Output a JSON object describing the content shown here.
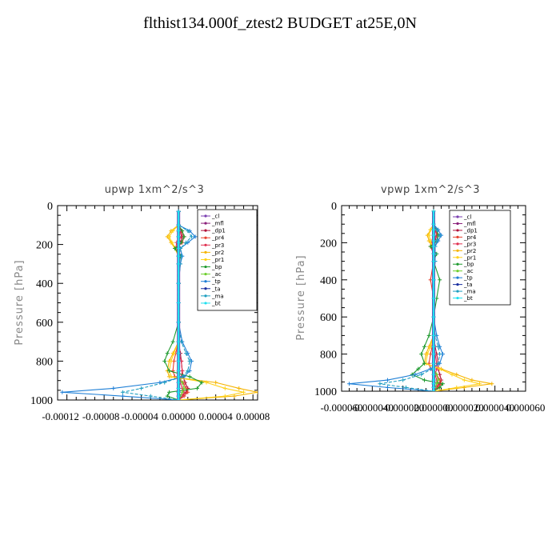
{
  "title": "flthist134.000f_ztest2  BUDGET at25E,0N",
  "legend_entries": [
    {
      "label": "_cl",
      "color": "#7a3fb0"
    },
    {
      "label": "_mfl",
      "color": "#8a1f7a"
    },
    {
      "label": "_dp1",
      "color": "#b0123a"
    },
    {
      "label": "_pr4",
      "color": "#e8412e"
    },
    {
      "label": "_pr3",
      "color": "#e03050"
    },
    {
      "label": "_pr2",
      "color": "#f5b400"
    },
    {
      "label": "_pr1",
      "color": "#ffd21a"
    },
    {
      "label": "_bp",
      "color": "#1e9a2e"
    },
    {
      "label": "_ac",
      "color": "#6ecf2e"
    },
    {
      "label": "_tp",
      "color": "#1e7fd6"
    },
    {
      "label": "_ta",
      "color": "#1a2fa0"
    },
    {
      "label": "_ma",
      "color": "#1e9ec0"
    },
    {
      "label": "_bt",
      "color": "#20e0f0"
    }
  ],
  "chart_data": [
    {
      "type": "line",
      "title": "upwp   1xm^2/s^3",
      "ylabel": "Pressure [hPa]",
      "xlim": [
        -0.00013,
        8.5e-05
      ],
      "ylim": [
        1000,
        0
      ],
      "x_ticks": [
        "-0.00012",
        "-0.00008",
        "-0.00004",
        "0.00000",
        "0.00004",
        "0.00008"
      ],
      "x_tick_values": [
        -0.00012,
        -8e-05,
        -4e-05,
        0.0,
        4e-05,
        8e-05
      ],
      "y_ticks": [
        "0",
        "200",
        "400",
        "600",
        "800",
        "1000"
      ],
      "y_tick_values": [
        0,
        200,
        400,
        600,
        800,
        1000
      ],
      "pressure": [
        30,
        100,
        130,
        160,
        190,
        220,
        260,
        300,
        400,
        500,
        600,
        700,
        760,
        800,
        850,
        880,
        910,
        940,
        960,
        980,
        1000
      ],
      "series": [
        {
          "name": "_cl",
          "values": [
            0,
            0,
            0,
            0,
            0,
            0,
            0,
            0,
            0,
            0,
            0,
            0,
            0,
            0,
            0,
            0,
            0,
            0,
            0,
            0,
            0
          ]
        },
        {
          "name": "_mfl",
          "values": [
            0,
            0,
            0,
            0,
            0,
            0,
            0,
            0,
            0,
            0,
            0,
            0,
            0,
            0,
            0,
            0,
            0,
            0,
            0,
            0,
            0
          ]
        },
        {
          "name": "_dp1",
          "values": [
            0,
            0,
            2e-06,
            4e-06,
            2e-06,
            -2e-06,
            1e-06,
            0,
            0,
            0,
            0,
            0,
            2e-06,
            3e-06,
            4e-06,
            5e-06,
            7e-06,
            1e-05,
            8e-06,
            4e-06,
            0
          ]
        },
        {
          "name": "_pr4",
          "values": [
            0,
            0,
            3e-06,
            6e-06,
            4e-06,
            -3e-06,
            2e-06,
            0,
            0,
            0,
            0,
            0,
            -3e-06,
            -5e-06,
            -6e-06,
            -4e-06,
            5e-06,
            8e-06,
            1e-05,
            6e-06,
            0
          ]
        },
        {
          "name": "_pr3",
          "values": [
            0,
            0,
            2e-06,
            3e-06,
            -2e-06,
            -3e-06,
            0,
            0,
            0,
            0,
            0,
            0,
            0,
            3e-06,
            4e-06,
            3e-06,
            2e-06,
            4e-06,
            6e-06,
            4e-06,
            0
          ]
        },
        {
          "name": "_pr2",
          "values": [
            0,
            0,
            -8e-06,
            -1.2e-05,
            -8e-06,
            -4e-06,
            0,
            0,
            0,
            0,
            0,
            0,
            -6e-06,
            -1e-05,
            -1.2e-05,
            -1e-05,
            4e-05,
            6.5e-05,
            8.5e-05,
            6e-05,
            0
          ]
        },
        {
          "name": "_pr1",
          "values": [
            0,
            0,
            -6e-06,
            -1e-05,
            -7e-06,
            -3e-06,
            0,
            0,
            0,
            0,
            0,
            0,
            -5e-06,
            -8e-06,
            -1e-05,
            -8e-06,
            3e-05,
            5e-05,
            7e-05,
            5e-05,
            0
          ]
        },
        {
          "name": "_bp",
          "values": [
            0,
            0,
            4e-06,
            6e-06,
            3e-06,
            -4e-06,
            2e-06,
            0,
            0,
            0,
            0,
            -6e-06,
            -1.2e-05,
            -1.5e-05,
            -1e-05,
            1.2e-05,
            2.5e-05,
            2e-05,
            -1e-05,
            -1.2e-05,
            0
          ]
        },
        {
          "name": "_ac",
          "values": [
            0,
            0,
            0,
            0,
            0,
            0,
            0,
            0,
            0,
            0,
            0,
            0,
            0,
            0,
            0,
            0,
            4e-06,
            6e-06,
            4e-06,
            2e-06,
            0
          ]
        },
        {
          "name": "_tp",
          "values": [
            0,
            0,
            1.2e-05,
            1.8e-05,
            1e-05,
            2e-06,
            4e-06,
            2e-06,
            0,
            0,
            0,
            4e-06,
            1e-05,
            1.4e-05,
            1.2e-05,
            6e-06,
            -2e-05,
            -7e-05,
            -0.000125,
            -6e-05,
            0
          ]
        },
        {
          "name": "_ta",
          "values": [
            0,
            0,
            0,
            0,
            0,
            0,
            0,
            0,
            0,
            0,
            0,
            0,
            0,
            0,
            0,
            0,
            0,
            0,
            0,
            0,
            0
          ]
        },
        {
          "name": "_ma",
          "values": [
            0,
            0,
            1e-05,
            1.4e-05,
            8e-06,
            2e-06,
            3e-06,
            2e-06,
            0,
            0,
            0,
            3e-06,
            8e-06,
            1.2e-05,
            1e-05,
            4e-06,
            -1.5e-05,
            -4e-05,
            -6e-05,
            -3e-05,
            0
          ]
        },
        {
          "name": "_bt",
          "values": [
            0,
            0,
            0,
            0,
            0,
            0,
            0,
            0,
            0,
            0,
            0,
            0,
            0,
            0,
            0,
            0,
            0,
            0,
            0,
            0,
            0
          ]
        }
      ]
    },
    {
      "type": "line",
      "title": "vpwp   1xm^2/s^3",
      "ylabel": "Pressure [hPa]",
      "xlim": [
        -6e-05,
        6e-05
      ],
      "ylim": [
        1000,
        0
      ],
      "x_ticks": [
        "-0.000060",
        "-0.000040",
        "-0.000020",
        "0.000000",
        "0.000020",
        "0.000040",
        "0.000060"
      ],
      "x_tick_values": [
        -6e-05,
        -4e-05,
        -2e-05,
        0.0,
        2e-05,
        4e-05,
        6e-05
      ],
      "y_ticks": [
        "0",
        "200",
        "400",
        "600",
        "800",
        "1000"
      ],
      "y_tick_values": [
        0,
        200,
        400,
        600,
        800,
        1000
      ],
      "pressure": [
        30,
        100,
        130,
        160,
        190,
        220,
        260,
        300,
        400,
        500,
        600,
        700,
        760,
        800,
        850,
        880,
        910,
        940,
        960,
        980,
        1000
      ],
      "series": [
        {
          "name": "_cl",
          "values": [
            0,
            0,
            0,
            0,
            0,
            0,
            0,
            0,
            0,
            0,
            0,
            0,
            0,
            0,
            0,
            0,
            0,
            0,
            0,
            0,
            0
          ]
        },
        {
          "name": "_mfl",
          "values": [
            0,
            0,
            0,
            0,
            0,
            0,
            0,
            0,
            0,
            0,
            0,
            0,
            0,
            0,
            0,
            0,
            0,
            0,
            0,
            0,
            0
          ]
        },
        {
          "name": "_dp1",
          "values": [
            0,
            0,
            1e-06,
            2e-06,
            1e-06,
            -1e-06,
            0,
            0,
            0,
            0,
            0,
            0,
            1e-06,
            2e-06,
            3e-06,
            3e-06,
            4e-06,
            5e-06,
            4e-06,
            2e-06,
            0
          ]
        },
        {
          "name": "_pr4",
          "values": [
            0,
            0,
            1e-06,
            3e-06,
            2e-06,
            -2e-06,
            0,
            0,
            -2e-06,
            0,
            0,
            0,
            -1e-06,
            -2e-06,
            -3e-06,
            -2e-06,
            2e-06,
            4e-06,
            5e-06,
            3e-06,
            0
          ]
        },
        {
          "name": "_pr3",
          "values": [
            0,
            0,
            1e-06,
            2e-06,
            -1e-06,
            -2e-06,
            0,
            0,
            0,
            0,
            0,
            0,
            0,
            1e-06,
            2e-06,
            2e-06,
            1e-06,
            2e-06,
            3e-06,
            2e-06,
            0
          ]
        },
        {
          "name": "_pr2",
          "values": [
            0,
            0,
            -2e-06,
            -4e-06,
            -3e-06,
            -1e-06,
            0,
            0,
            0,
            0,
            0,
            0,
            -3e-06,
            -5e-06,
            -6e-06,
            5e-06,
            1.5e-05,
            2.5e-05,
            3.8e-05,
            2e-05,
            0
          ]
        },
        {
          "name": "_pr1",
          "values": [
            0,
            0,
            -2e-06,
            -3e-06,
            -2e-06,
            -1e-06,
            0,
            0,
            0,
            0,
            0,
            0,
            -2e-06,
            -4e-06,
            -5e-06,
            4e-06,
            1.2e-05,
            2e-05,
            3e-05,
            1.5e-05,
            0
          ]
        },
        {
          "name": "_bp",
          "values": [
            0,
            0,
            2e-06,
            3e-06,
            2e-06,
            -2e-06,
            2e-06,
            0,
            4e-06,
            2e-06,
            0,
            -3e-06,
            -6e-06,
            -8e-06,
            -6e-06,
            -1e-05,
            -1.4e-05,
            -6e-06,
            6e-06,
            4e-06,
            0
          ]
        },
        {
          "name": "_ac",
          "values": [
            0,
            0,
            0,
            0,
            0,
            0,
            0,
            0,
            0,
            0,
            0,
            0,
            0,
            0,
            0,
            0,
            2e-06,
            3e-06,
            2e-06,
            1e-06,
            0
          ]
        },
        {
          "name": "_tp",
          "values": [
            0,
            0,
            3e-06,
            5e-06,
            3e-06,
            1e-06,
            1e-06,
            1e-06,
            0,
            0,
            0,
            2e-06,
            4e-06,
            6e-06,
            4e-06,
            -2e-06,
            -1.2e-05,
            -3e-05,
            -5.5e-05,
            -3e-05,
            0
          ]
        },
        {
          "name": "_ta",
          "values": [
            0,
            0,
            0,
            0,
            0,
            0,
            0,
            0,
            0,
            0,
            0,
            0,
            0,
            0,
            0,
            0,
            0,
            0,
            0,
            0,
            0
          ]
        },
        {
          "name": "_ma",
          "values": [
            0,
            0,
            2e-06,
            4e-06,
            2e-06,
            1e-06,
            1e-06,
            1e-06,
            0,
            0,
            0,
            1e-06,
            3e-06,
            4e-06,
            3e-06,
            -1e-06,
            -8e-06,
            -2e-05,
            -3.5e-05,
            -1.8e-05,
            0
          ]
        },
        {
          "name": "_bt",
          "values": [
            0,
            0,
            0,
            0,
            0,
            0,
            0,
            0,
            0,
            0,
            0,
            0,
            0,
            0,
            0,
            0,
            0,
            0,
            0,
            0,
            0
          ]
        }
      ]
    }
  ]
}
